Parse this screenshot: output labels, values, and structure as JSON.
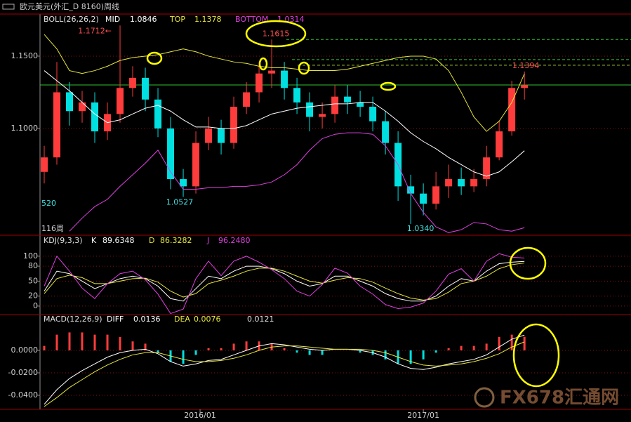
{
  "header": {
    "title": "欧元美元(外汇_D 8160)周线",
    "watermark": "FX678汇通网"
  },
  "chart_data": [
    {
      "type": "candlestick",
      "title": "BOLL(26,26,2)",
      "x": [
        1,
        4,
        7,
        10,
        13,
        16,
        19,
        22,
        25,
        28,
        31,
        34,
        37,
        40,
        43,
        46,
        49,
        52,
        55,
        58,
        61,
        64,
        67,
        70,
        73,
        76,
        79,
        82,
        85,
        88,
        91,
        94,
        97,
        100,
        103,
        106,
        109,
        112,
        115
      ],
      "xlim": [
        0,
        140.3
      ],
      "xticks": [
        {
          "value": 38,
          "label": "2016/01"
        },
        {
          "value": 91,
          "label": "2017/01"
        }
      ],
      "open": [
        1.07,
        1.08,
        1.125,
        1.112,
        1.118,
        1.098,
        1.11,
        1.128,
        1.135,
        1.12,
        1.1,
        1.065,
        1.06,
        1.09,
        1.1,
        1.09,
        1.115,
        1.125,
        1.138,
        1.14,
        1.128,
        1.118,
        1.108,
        1.11,
        1.122,
        1.118,
        1.115,
        1.105,
        1.09,
        1.06,
        1.055,
        1.048,
        1.06,
        1.065,
        1.06,
        1.065,
        1.08,
        1.098,
        1.128
      ],
      "high": [
        1.088,
        1.146,
        1.132,
        1.126,
        1.125,
        1.118,
        1.1712,
        1.143,
        1.142,
        1.128,
        1.108,
        1.072,
        1.098,
        1.108,
        1.106,
        1.122,
        1.132,
        1.146,
        1.1615,
        1.146,
        1.135,
        1.125,
        1.118,
        1.13,
        1.13,
        1.126,
        1.122,
        1.112,
        1.098,
        1.068,
        1.062,
        1.07,
        1.075,
        1.073,
        1.072,
        1.088,
        1.105,
        1.133,
        1.1394
      ],
      "low": [
        1.062,
        1.075,
        1.102,
        1.104,
        1.09,
        1.092,
        1.104,
        1.122,
        1.112,
        1.094,
        1.058,
        1.0527,
        1.055,
        1.085,
        1.082,
        1.086,
        1.11,
        1.118,
        1.128,
        1.12,
        1.11,
        1.098,
        1.1,
        1.104,
        1.11,
        1.108,
        1.098,
        1.082,
        1.05,
        1.034,
        1.04,
        1.044,
        1.052,
        1.054,
        1.056,
        1.06,
        1.078,
        1.095,
        1.12
      ],
      "close": [
        1.08,
        1.125,
        1.112,
        1.118,
        1.098,
        1.11,
        1.128,
        1.135,
        1.12,
        1.1,
        1.065,
        1.06,
        1.09,
        1.1,
        1.09,
        1.115,
        1.125,
        1.138,
        1.14,
        1.128,
        1.118,
        1.108,
        1.11,
        1.122,
        1.118,
        1.115,
        1.105,
        1.09,
        1.06,
        1.055,
        1.048,
        1.06,
        1.065,
        1.06,
        1.065,
        1.08,
        1.098,
        1.128,
        1.13
      ],
      "up_color": "#ff3c3c",
      "down_color": "#00e0e0",
      "series": [
        {
          "name": "MID",
          "color": "#ffffff",
          "current": "1.0846",
          "values": [
            1.14,
            1.133,
            1.126,
            1.118,
            1.11,
            1.104,
            1.106,
            1.11,
            1.114,
            1.116,
            1.112,
            1.106,
            1.101,
            1.101,
            1.1,
            1.1,
            1.102,
            1.106,
            1.11,
            1.112,
            1.114,
            1.115,
            1.116,
            1.117,
            1.117,
            1.118,
            1.118,
            1.112,
            1.105,
            1.097,
            1.091,
            1.086,
            1.08,
            1.075,
            1.07,
            1.067,
            1.07,
            1.077,
            1.0846
          ]
        },
        {
          "name": "TOP",
          "color": "#e6e63c",
          "current": "1.1378",
          "values": [
            1.165,
            1.155,
            1.14,
            1.138,
            1.14,
            1.143,
            1.147,
            1.149,
            1.15,
            1.151,
            1.153,
            1.155,
            1.153,
            1.15,
            1.148,
            1.146,
            1.145,
            1.143,
            1.142,
            1.142,
            1.141,
            1.14,
            1.14,
            1.14,
            1.141,
            1.143,
            1.145,
            1.147,
            1.149,
            1.15,
            1.15,
            1.148,
            1.14,
            1.125,
            1.108,
            1.098,
            1.105,
            1.118,
            1.1378
          ]
        },
        {
          "name": "BOTTOM",
          "color": "#e040e0",
          "current": "1.0314",
          "values": [
            null,
            null,
            1.029,
            1.038,
            1.046,
            1.051,
            1.06,
            1.068,
            1.076,
            1.085,
            1.07,
            1.058,
            1.058,
            1.059,
            1.059,
            1.06,
            1.06,
            1.061,
            1.063,
            1.068,
            1.075,
            1.085,
            1.093,
            1.096,
            1.097,
            1.097,
            1.096,
            1.088,
            1.075,
            1.055,
            1.042,
            1.032,
            1.028,
            1.03,
            1.035,
            1.034,
            1.03,
            1.029,
            1.0314
          ]
        }
      ],
      "ylim": [
        1.0262,
        1.1791
      ],
      "yticks": [
        {
          "value": 1.15,
          "label": "1.1500"
        },
        {
          "value": 1.1,
          "label": "1.1000"
        }
      ],
      "grid": true,
      "hlines": [
        {
          "value": 1.1301,
          "style": "solid",
          "color": "#30c030"
        },
        {
          "value": 1.1615,
          "style": "dashed",
          "color": "#30c030"
        },
        {
          "value": 1.1476,
          "style": "dashed",
          "color": "#30c030"
        },
        {
          "value": 1.1437,
          "style": "dashed",
          "color": "#a0c830"
        }
      ],
      "annotations": [
        {
          "text": "1.1712←",
          "x": 19,
          "y": 1.1712,
          "color": "#ff5050"
        },
        {
          "text": "1.1615",
          "x": 55,
          "y": 1.1615,
          "color": "#ff5050"
        },
        {
          "text": "1.1394",
          "x": 115,
          "y": 1.1394,
          "color": "#ff5050"
        },
        {
          "text": "1.0527",
          "x": 34,
          "y": 1.0527,
          "color": "#40e0e0"
        },
        {
          "text": "1.0340",
          "x": 88,
          "y": 1.034,
          "color": "#40e0e0"
        }
      ],
      "footnotes": [
        "520",
        "116周"
      ]
    },
    {
      "type": "line",
      "title": "KDJ(9,3,3)",
      "series": [
        {
          "name": "K",
          "color": "#ffffff",
          "current": "89.6348",
          "values": [
            30,
            70,
            65,
            50,
            35,
            45,
            55,
            60,
            55,
            40,
            15,
            10,
            35,
            60,
            55,
            70,
            80,
            80,
            75,
            65,
            50,
            40,
            45,
            60,
            60,
            50,
            40,
            25,
            15,
            10,
            10,
            20,
            40,
            55,
            50,
            70,
            85,
            88,
            89.6348
          ]
        },
        {
          "name": "D",
          "color": "#e6e63c",
          "current": "86.3282",
          "values": [
            25,
            55,
            62,
            57,
            45,
            45,
            50,
            55,
            56,
            48,
            30,
            18,
            25,
            45,
            52,
            60,
            70,
            76,
            76,
            70,
            60,
            50,
            46,
            52,
            57,
            55,
            48,
            36,
            25,
            16,
            12,
            15,
            28,
            45,
            50,
            60,
            75,
            83,
            86.3282
          ]
        },
        {
          "name": "J",
          "color": "#e040e0",
          "current": "96.2480",
          "values": [
            40,
            100,
            70,
            36,
            15,
            45,
            65,
            70,
            53,
            24,
            -15,
            -6,
            55,
            90,
            61,
            90,
            100,
            88,
            73,
            55,
            30,
            20,
            43,
            76,
            66,
            40,
            24,
            3,
            -5,
            -2,
            6,
            30,
            64,
            75,
            50,
            90,
            105,
            98,
            96.248
          ]
        }
      ],
      "ylim": [
        -17,
        142
      ],
      "yticks": [
        100,
        80,
        50,
        20,
        0
      ],
      "grid": true
    },
    {
      "type": "line",
      "title": "MACD(12,26,9)",
      "series": [
        {
          "name": "DIFF",
          "color": "#ffffff",
          "current": "0.0136",
          "values": [
            -0.048,
            -0.035,
            -0.025,
            -0.018,
            -0.012,
            -0.006,
            -0.002,
            0.0,
            0.001,
            -0.003,
            -0.01,
            -0.014,
            -0.012,
            -0.009,
            -0.008,
            -0.004,
            0.0,
            0.004,
            0.006,
            0.005,
            0.003,
            0.001,
            0.0,
            0.001,
            0.001,
            0.0,
            -0.002,
            -0.006,
            -0.012,
            -0.016,
            -0.017,
            -0.015,
            -0.012,
            -0.01,
            -0.008,
            -0.004,
            0.003,
            0.01,
            0.0136
          ]
        },
        {
          "name": "DEA",
          "color": "#e6e63c",
          "current": "0.0076",
          "values": [
            -0.05,
            -0.042,
            -0.033,
            -0.026,
            -0.019,
            -0.013,
            -0.008,
            -0.004,
            -0.002,
            -0.002,
            -0.005,
            -0.008,
            -0.01,
            -0.01,
            -0.009,
            -0.007,
            -0.004,
            0.0,
            0.003,
            0.004,
            0.004,
            0.003,
            0.002,
            0.001,
            0.001,
            0.001,
            0.0,
            -0.002,
            -0.006,
            -0.01,
            -0.013,
            -0.014,
            -0.013,
            -0.012,
            -0.01,
            -0.007,
            -0.003,
            0.003,
            0.0076
          ]
        }
      ],
      "bars": {
        "current": "0.0121",
        "up_color": "#ff3c3c",
        "down_color": "#00e0e0",
        "values": [
          0.004,
          0.014,
          0.016,
          0.016,
          0.014,
          0.014,
          0.012,
          0.008,
          0.006,
          -0.002,
          -0.01,
          -0.012,
          -0.004,
          0.002,
          0.002,
          0.006,
          0.008,
          0.008,
          0.006,
          0.002,
          -0.002,
          -0.004,
          -0.004,
          0,
          0,
          -0.002,
          -0.004,
          -0.008,
          -0.012,
          -0.012,
          -0.008,
          -0.002,
          0.002,
          0.004,
          0.004,
          0.006,
          0.012,
          0.014,
          0.0121
        ]
      },
      "ylim": [
        -0.0525,
        0.0319
      ],
      "yticks": [
        {
          "value": 0,
          "label": "0.0000"
        },
        {
          "value": -0.02,
          "label": "-0.0200"
        },
        {
          "value": -0.04,
          "label": "-0.0400"
        }
      ],
      "grid": true
    }
  ]
}
